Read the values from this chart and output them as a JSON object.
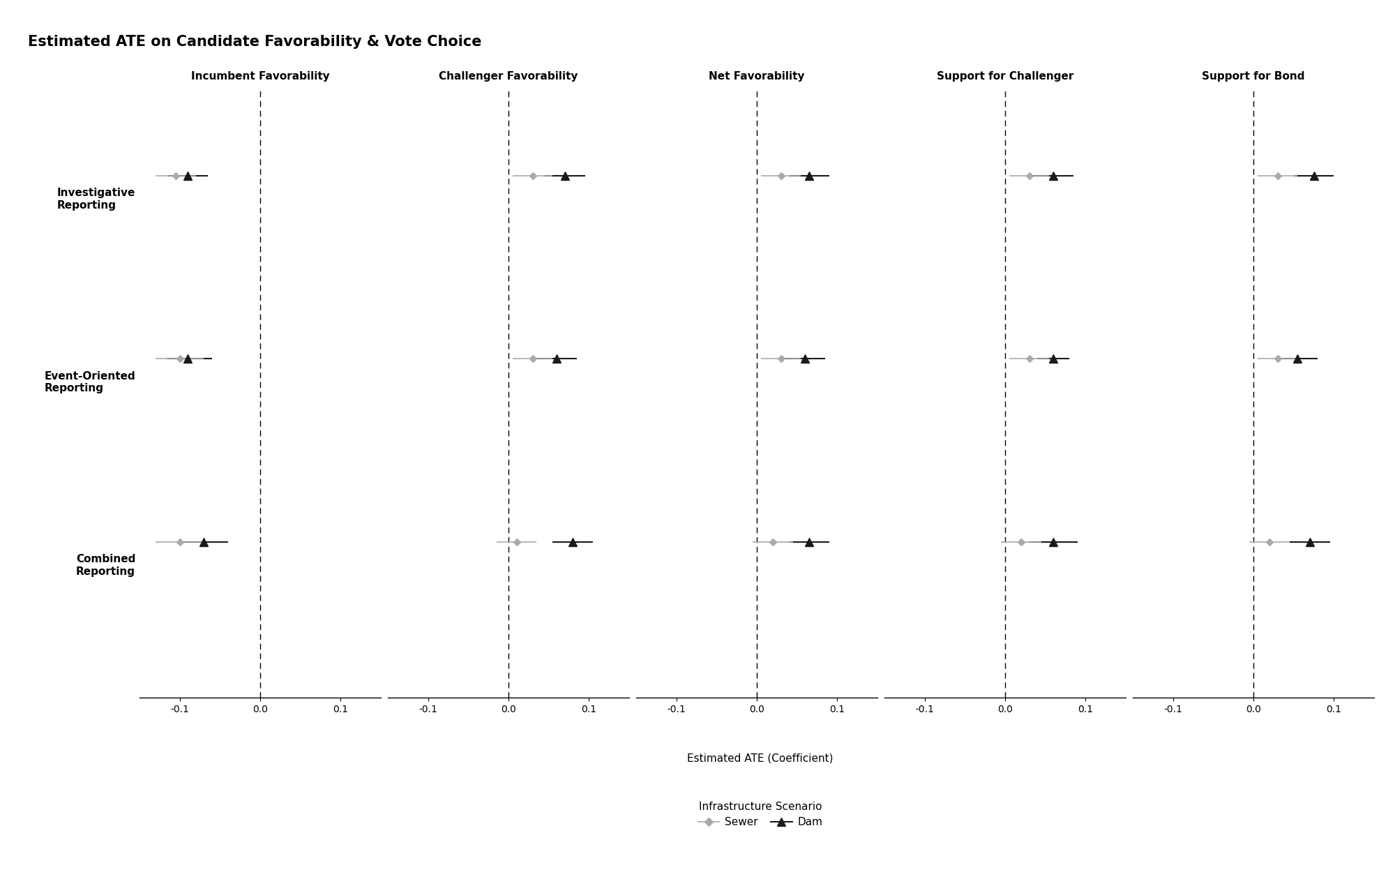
{
  "title": "Estimated ATE on Candidate Favorability & Vote Choice",
  "xlabel": "Estimated ATE (Coefficient)",
  "panel_titles": [
    "Incumbent Favorability",
    "Challenger Favorability",
    "Net Favorability",
    "Support for Challenger",
    "Support for Bond"
  ],
  "row_labels": [
    "Investigative\nReporting",
    "Event-Oriented\nReporting",
    "Combined\nReporting"
  ],
  "xlim": [
    -0.15,
    0.15
  ],
  "xticks": [
    -0.1,
    0.0,
    0.1
  ],
  "xticklabels": [
    "-0.1",
    "0.0",
    "0.1"
  ],
  "dam": {
    "color": "#1a1a1a",
    "marker": "^",
    "markersize": 8,
    "linewidth": 1.5,
    "label": "Dam"
  },
  "sewer": {
    "color": "#aaaaaa",
    "marker": "D",
    "markersize": 5,
    "linewidth": 1.2,
    "label": "Sewer"
  },
  "estimates": {
    "Incumbent Favorability": {
      "dam": {
        "est": [
          -0.09,
          -0.09,
          -0.07
        ],
        "ci_lo": [
          -0.115,
          -0.115,
          -0.1
        ],
        "ci_hi": [
          -0.065,
          -0.06,
          -0.04
        ]
      },
      "sewer": {
        "est": [
          -0.105,
          -0.1,
          -0.1
        ],
        "ci_lo": [
          -0.13,
          -0.13,
          -0.13
        ],
        "ci_hi": [
          -0.08,
          -0.07,
          -0.07
        ]
      }
    },
    "Challenger Favorability": {
      "dam": {
        "est": [
          0.07,
          0.06,
          0.08
        ],
        "ci_lo": [
          0.045,
          0.035,
          0.055
        ],
        "ci_hi": [
          0.095,
          0.085,
          0.105
        ]
      },
      "sewer": {
        "est": [
          0.03,
          0.03,
          0.01
        ],
        "ci_lo": [
          0.005,
          0.005,
          -0.015
        ],
        "ci_hi": [
          0.055,
          0.055,
          0.035
        ]
      }
    },
    "Net Favorability": {
      "dam": {
        "est": [
          0.065,
          0.06,
          0.065
        ],
        "ci_lo": [
          0.04,
          0.035,
          0.04
        ],
        "ci_hi": [
          0.09,
          0.085,
          0.09
        ]
      },
      "sewer": {
        "est": [
          0.03,
          0.03,
          0.02
        ],
        "ci_lo": [
          0.005,
          0.005,
          -0.005
        ],
        "ci_hi": [
          0.055,
          0.055,
          0.045
        ]
      }
    },
    "Support for Challenger": {
      "dam": {
        "est": [
          0.06,
          0.06,
          0.06
        ],
        "ci_lo": [
          0.035,
          0.04,
          0.03
        ],
        "ci_hi": [
          0.085,
          0.08,
          0.09
        ]
      },
      "sewer": {
        "est": [
          0.03,
          0.03,
          0.02
        ],
        "ci_lo": [
          0.005,
          0.005,
          -0.005
        ],
        "ci_hi": [
          0.055,
          0.055,
          0.045
        ]
      }
    },
    "Support for Bond": {
      "dam": {
        "est": [
          0.075,
          0.055,
          0.07
        ],
        "ci_lo": [
          0.05,
          0.03,
          0.045
        ],
        "ci_hi": [
          0.1,
          0.08,
          0.095
        ]
      },
      "sewer": {
        "est": [
          0.03,
          0.03,
          0.02
        ],
        "ci_lo": [
          0.005,
          0.005,
          -0.005
        ],
        "ci_hi": [
          0.055,
          0.055,
          0.045
        ]
      }
    }
  },
  "background_color": "#ffffff",
  "title_fontsize": 15,
  "label_fontsize": 11,
  "tick_fontsize": 10,
  "panel_title_fontsize": 11,
  "row_label_fontsize": 11,
  "legend_title_fontsize": 11,
  "legend_fontsize": 11
}
